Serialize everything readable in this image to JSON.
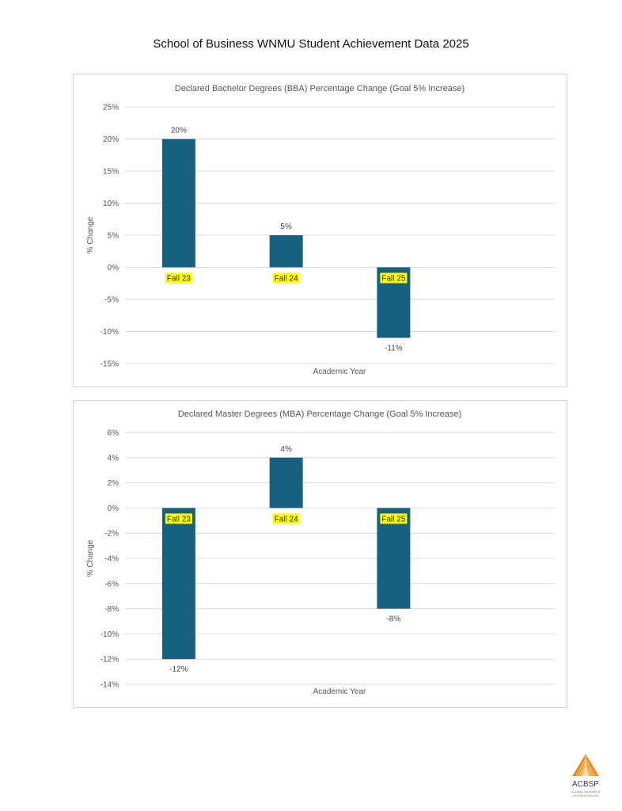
{
  "page": {
    "title": "School of Business WNMU Student Achievement Data 2025"
  },
  "logo": {
    "name": "ACBSP",
    "tagline_1": "GLOBAL BUSINESS",
    "tagline_2": "ACCREDITATION",
    "color": "#F28A1E"
  },
  "chart_data": [
    {
      "type": "bar",
      "title": "Declared Bachelor Degrees (BBA) Percentage Change (Goal 5% Increase)",
      "xlabel": "Academic Year",
      "ylabel": "% Change",
      "categories": [
        "Fall 23",
        "Fall 24",
        "Fall 25"
      ],
      "values": [
        20,
        5,
        -11
      ],
      "data_labels": [
        "20%",
        "5%",
        "-11%"
      ],
      "ylim": [
        -15,
        25
      ],
      "yticks": [
        25,
        20,
        15,
        10,
        5,
        0,
        -5,
        -10,
        -15
      ],
      "ytick_labels": [
        "25%",
        "20%",
        "15%",
        "10%",
        "5%",
        "0%",
        "-5%",
        "-10%",
        "-15%"
      ],
      "grid": true,
      "bar_color": "#17607F",
      "category_highlight_color": "#FFFF00"
    },
    {
      "type": "bar",
      "title": "Declared Master Degrees (MBA) Percentage Change (Goal 5% Increase)",
      "xlabel": "Academic Year",
      "ylabel": "% Change",
      "categories": [
        "Fall 23",
        "Fall 24",
        "Fall 25"
      ],
      "values": [
        -12,
        4,
        -8
      ],
      "data_labels": [
        "-12%",
        "4%",
        "-8%"
      ],
      "ylim": [
        -14,
        6
      ],
      "yticks": [
        6,
        4,
        2,
        0,
        -2,
        -4,
        -6,
        -8,
        -10,
        -12,
        -14
      ],
      "ytick_labels": [
        "6%",
        "4%",
        "2%",
        "0%",
        "-2%",
        "-4%",
        "-6%",
        "-8%",
        "-10%",
        "-12%",
        "-14%"
      ],
      "grid": true,
      "bar_color": "#17607F",
      "category_highlight_color": "#FFFF00"
    }
  ]
}
